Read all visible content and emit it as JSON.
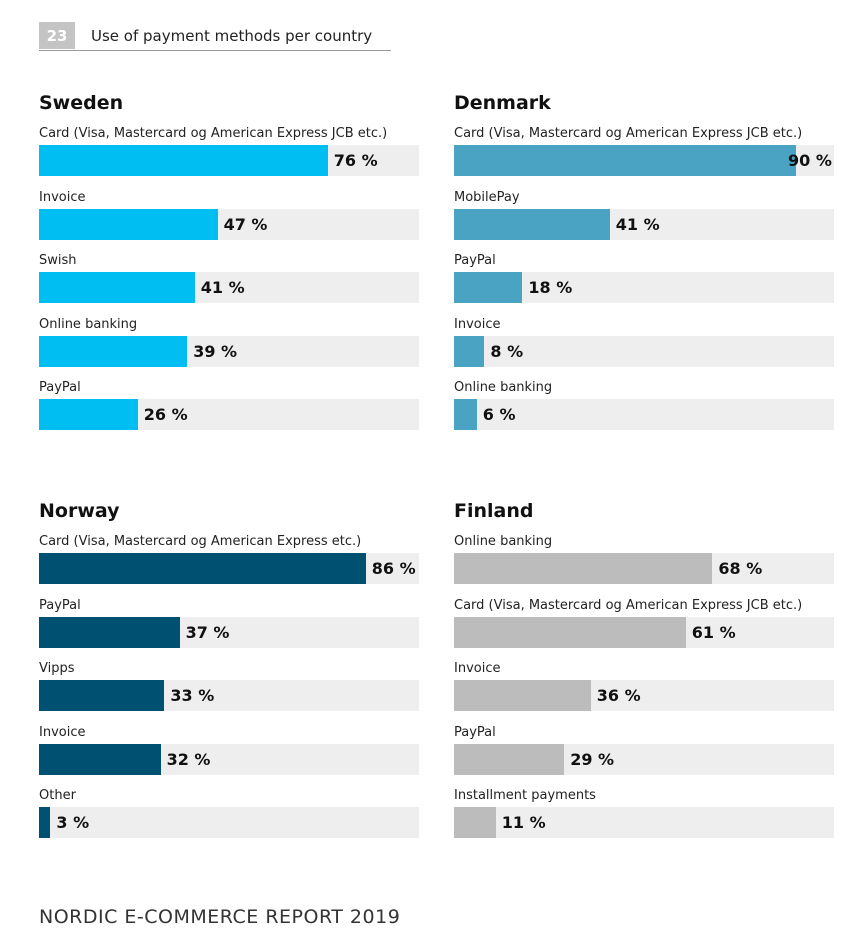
{
  "figure": {
    "number": "23",
    "title": "Use of payment methods per country"
  },
  "footer": "NORDIC E-COMMERCE REPORT 2019",
  "chart_data": [
    {
      "type": "bar",
      "orientation": "horizontal",
      "title": "Sweden",
      "color": "#00bdf2",
      "unit": "%",
      "xlim": [
        0,
        100
      ],
      "categories": [
        "Card (Visa, Mastercard og American Express JCB etc.)",
        "Invoice",
        "Swish",
        "Online banking",
        "PayPal"
      ],
      "values": [
        76,
        47,
        41,
        39,
        26
      ],
      "value_labels": [
        "76 %",
        "47 %",
        "41 %",
        "39 %",
        "26 %"
      ]
    },
    {
      "type": "bar",
      "orientation": "horizontal",
      "title": "Denmark",
      "color": "#4aa3c2",
      "unit": "%",
      "xlim": [
        0,
        100
      ],
      "categories": [
        "Card  (Visa, Mastercard og American Express JCB etc.)",
        "MobilePay",
        "PayPal",
        "Invoice",
        "Online banking"
      ],
      "values": [
        90,
        41,
        18,
        8,
        6
      ],
      "value_labels": [
        "90 %",
        "41 %",
        "18 %",
        "8 %",
        "6 %"
      ]
    },
    {
      "type": "bar",
      "orientation": "horizontal",
      "title": "Norway",
      "color": "#005072",
      "unit": "%",
      "xlim": [
        0,
        100
      ],
      "categories": [
        "Card  (Visa, Mastercard og American Express etc.)",
        "PayPal",
        "Vipps",
        "Invoice",
        "Other"
      ],
      "values": [
        86,
        37,
        33,
        32,
        3
      ],
      "value_labels": [
        "86 %",
        "37 %",
        "33 %",
        "32 %",
        "3 %"
      ]
    },
    {
      "type": "bar",
      "orientation": "horizontal",
      "title": "Finland",
      "color": "#bcbcbc",
      "unit": "%",
      "xlim": [
        0,
        100
      ],
      "categories": [
        "Online banking",
        "Card (Visa, Mastercard og American Express JCB etc.)",
        "Invoice",
        "PayPal",
        "Installment payments"
      ],
      "values": [
        68,
        61,
        36,
        29,
        11
      ],
      "value_labels": [
        "68 %",
        "61 %",
        "36 %",
        "29 %",
        "11 %"
      ]
    }
  ]
}
